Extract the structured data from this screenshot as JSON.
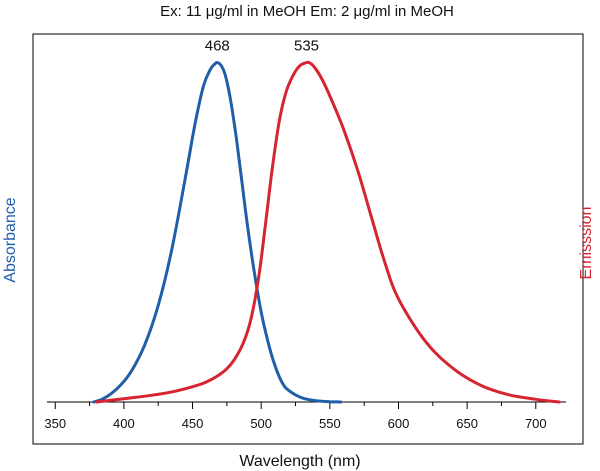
{
  "chart_data": {
    "type": "line",
    "title": "Ex: 11 μg/ml in MeOH   Em: 2 μg/ml in MeOH",
    "xlabel": "Wavelength (nm)",
    "ylabel_left": "Absorbance",
    "ylabel_right": "Emisssion",
    "xlim": [
      344,
      722
    ],
    "ylim": [
      0,
      1.1
    ],
    "xticks": [
      350,
      400,
      450,
      500,
      550,
      600,
      650,
      700
    ],
    "grid": false,
    "series": [
      {
        "name": "Absorbance",
        "color": "#1f5ea8",
        "peak_label": "468",
        "x": [
          378,
          385,
          395,
          405,
          415,
          425,
          435,
          445,
          452,
          458,
          463,
          466,
          468,
          471,
          474,
          478,
          482,
          486,
          490,
          495,
          500,
          505,
          510,
          515,
          520,
          530,
          540,
          550,
          558
        ],
        "y": [
          0.0,
          0.01,
          0.04,
          0.09,
          0.17,
          0.29,
          0.46,
          0.68,
          0.84,
          0.95,
          1.0,
          1.015,
          1.02,
          1.01,
          0.98,
          0.9,
          0.79,
          0.66,
          0.53,
          0.39,
          0.27,
          0.18,
          0.11,
          0.06,
          0.035,
          0.012,
          0.004,
          0.001,
          0.0
        ]
      },
      {
        "name": "Emisssion",
        "color": "#d62530",
        "peak_label": "535",
        "x": [
          380,
          400,
          420,
          440,
          460,
          475,
          485,
          492,
          498,
          503,
          508,
          513,
          518,
          523,
          528,
          533,
          535,
          538,
          543,
          550,
          560,
          570,
          580,
          590,
          600,
          620,
          640,
          660,
          680,
          700,
          717
        ],
        "y": [
          0.0,
          0.01,
          0.02,
          0.035,
          0.06,
          0.1,
          0.16,
          0.24,
          0.37,
          0.53,
          0.7,
          0.84,
          0.93,
          0.98,
          1.01,
          1.02,
          1.02,
          1.01,
          0.98,
          0.92,
          0.82,
          0.7,
          0.56,
          0.42,
          0.31,
          0.18,
          0.1,
          0.05,
          0.022,
          0.008,
          0.0
        ]
      }
    ]
  }
}
